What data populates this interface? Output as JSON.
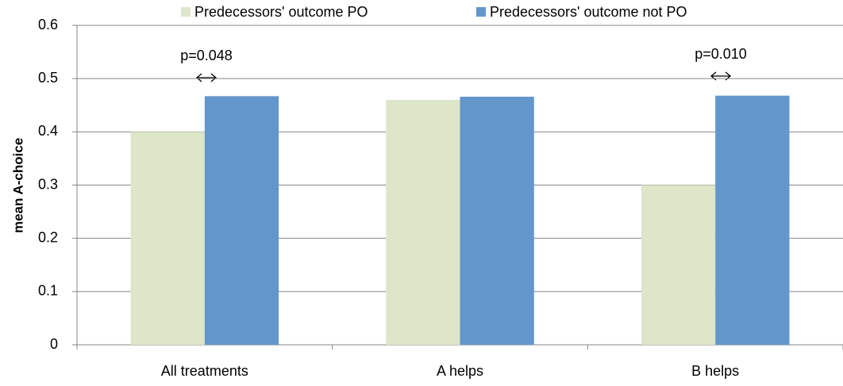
{
  "chart_data": {
    "type": "bar",
    "categories": [
      "All treatments",
      "A helps",
      "B helps"
    ],
    "series": [
      {
        "name": "Predecessors' outcome PO",
        "color": "#dde6c9",
        "values": [
          0.4,
          0.46,
          0.3
        ]
      },
      {
        "name": "Predecessors' outcome not PO",
        "color": "#6396cb",
        "values": [
          0.467,
          0.466,
          0.468
        ]
      }
    ],
    "y_label": "mean A-choice",
    "ylim": [
      0,
      0.6
    ],
    "yticks": [
      0,
      0.1,
      0.2,
      0.3,
      0.4,
      0.5,
      0.6
    ],
    "grid": true,
    "legend": "top",
    "annotations": [
      "p=0.048",
      "p=0.010"
    ]
  }
}
